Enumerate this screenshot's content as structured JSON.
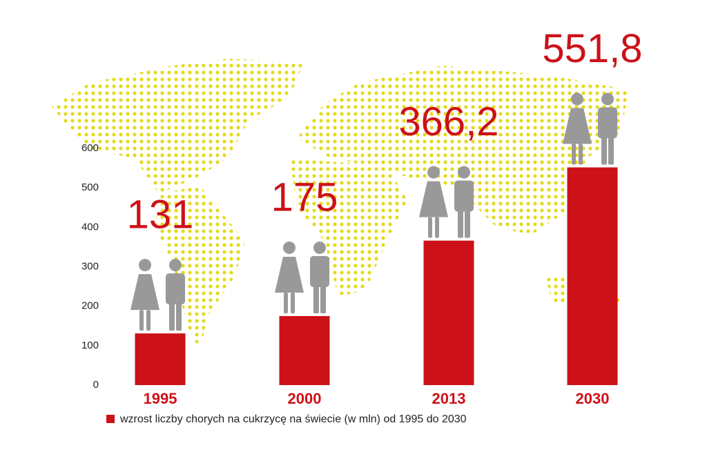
{
  "chart_data": {
    "type": "bar",
    "categories": [
      "1995",
      "2000",
      "2013",
      "2030"
    ],
    "series": [
      {
        "name": "wzrost liczby chorych na cukrzycę na świecie (w  mln) od 1995 do 2030",
        "color": "#cc1118",
        "values": [
          131,
          175,
          366.2,
          551.8
        ],
        "value_labels": [
          "131",
          "175",
          "366,2",
          "551,8"
        ]
      }
    ],
    "ylim": [
      0,
      600
    ],
    "yticks": [
      0,
      100,
      200,
      300,
      400,
      500,
      600
    ],
    "grid": false
  }
}
